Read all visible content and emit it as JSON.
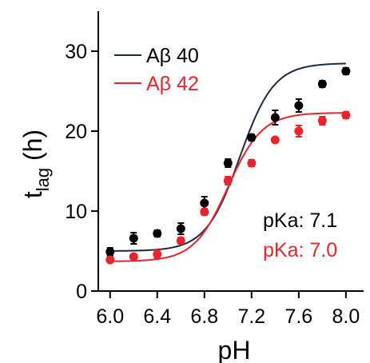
{
  "chart_data": {
    "type": "scatter",
    "xlabel": "pH",
    "ylabel_main": "t",
    "ylabel_sub": "lag",
    "ylabel_unit": " (h)",
    "xlim": [
      5.9,
      8.15
    ],
    "ylim": [
      0,
      35
    ],
    "x_ticks": [
      6.0,
      6.4,
      6.8,
      7.2,
      7.6,
      8.0
    ],
    "x_tick_labels": [
      "6.0",
      "6.4",
      "6.8",
      "7.2",
      "7.6",
      "8.0"
    ],
    "y_ticks": [
      0,
      10,
      20,
      30
    ],
    "y_tick_labels": [
      "0",
      "10",
      "20",
      "30"
    ],
    "grid": false,
    "legend_position": "top-left",
    "series": [
      {
        "name": "Aβ 40",
        "color": "#000000",
        "line_color": "#1a2a44",
        "x": [
          6.0,
          6.2,
          6.4,
          6.6,
          6.8,
          7.0,
          7.2,
          7.4,
          7.6,
          7.8,
          8.0
        ],
        "y": [
          4.9,
          6.6,
          7.2,
          7.8,
          11.0,
          16.0,
          19.2,
          21.7,
          23.2,
          25.9,
          27.5
        ],
        "err": [
          0.5,
          0.7,
          0.4,
          0.7,
          0.8,
          0.5,
          0.4,
          0.9,
          0.8,
          0.4,
          0.4
        ],
        "fit": {
          "bottom": 5.0,
          "top": 28.5,
          "pka": 7.1,
          "hill": 3.0
        },
        "pka_label": "pKa: 7.1"
      },
      {
        "name": "Aβ 42",
        "color": "#e8252d",
        "line_color": "#e8252d",
        "x": [
          6.0,
          6.2,
          6.4,
          6.6,
          6.8,
          7.0,
          7.2,
          7.4,
          7.6,
          7.8,
          8.0
        ],
        "y": [
          3.9,
          4.3,
          4.6,
          6.3,
          9.9,
          13.8,
          16.0,
          18.9,
          20.0,
          21.3,
          22.0
        ],
        "err": [
          0.3,
          0.3,
          0.5,
          0.4,
          0.4,
          0.5,
          0.4,
          0.3,
          0.7,
          0.5,
          0.4
        ],
        "fit": {
          "bottom": 3.7,
          "top": 22.3,
          "pka": 7.0,
          "hill": 3.0
        },
        "pka_label": "pKa: 7.0"
      }
    ]
  }
}
